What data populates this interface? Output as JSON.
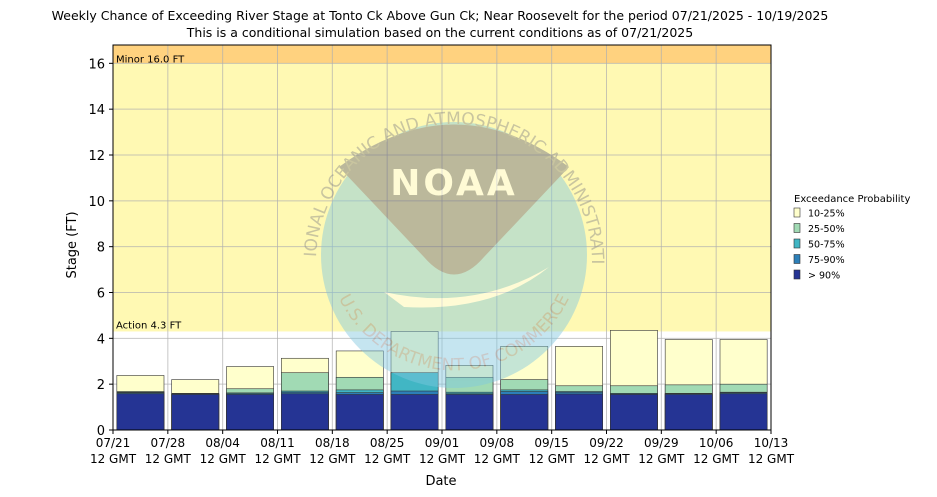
{
  "chart_data": {
    "type": "bar",
    "title": "Weekly Chance of Exceeding River Stage at Tonto Ck Above Gun Ck; Near Roosevelt for the period 07/21/2025 - 10/19/2025",
    "subtitle": "This is a conditional simulation based on the current conditions as of 07/21/2025",
    "xlabel": "Date",
    "ylabel": "Stage (FT)",
    "ylim": [
      0,
      16.8
    ],
    "yticks": [
      0,
      2,
      4,
      6,
      8,
      10,
      12,
      14,
      16
    ],
    "grid": true,
    "xtick_labels": [
      [
        "07/21",
        "12 GMT"
      ],
      [
        "07/28",
        "12 GMT"
      ],
      [
        "08/04",
        "12 GMT"
      ],
      [
        "08/11",
        "12 GMT"
      ],
      [
        "08/18",
        "12 GMT"
      ],
      [
        "08/25",
        "12 GMT"
      ],
      [
        "09/01",
        "12 GMT"
      ],
      [
        "09/08",
        "12 GMT"
      ],
      [
        "09/15",
        "12 GMT"
      ],
      [
        "09/22",
        "12 GMT"
      ],
      [
        "09/29",
        "12 GMT"
      ],
      [
        "10/06",
        "12 GMT"
      ],
      [
        "10/13",
        "12 GMT"
      ]
    ],
    "thresholds": [
      {
        "label": "Minor 16.0 FT",
        "value": 16.0,
        "color": "#ffd27f"
      },
      {
        "label": "Action 4.3 FT",
        "value": 4.3,
        "color": "#fff9b3"
      }
    ],
    "legend": {
      "title": "Exceedance Probability",
      "placement": "right",
      "items": [
        {
          "label": "10-25%",
          "color": "#ffffcc"
        },
        {
          "label": "25-50%",
          "color": "#a1dab4"
        },
        {
          "label": "50-75%",
          "color": "#41b6c4"
        },
        {
          "label": "75-90%",
          "color": "#2c7fb8"
        },
        {
          "label": "> 90%",
          "color": "#253494"
        }
      ]
    },
    "series": [
      {
        "name": "> 90%",
        "values": [
          1.58,
          1.55,
          1.55,
          1.58,
          1.55,
          1.55,
          1.55,
          1.55,
          1.57,
          1.55,
          1.55,
          1.58,
          1.58
        ]
      },
      {
        "name": "75-90%",
        "values": [
          1.62,
          1.57,
          1.58,
          1.65,
          1.63,
          1.7,
          1.58,
          1.68,
          1.65,
          1.57,
          1.58,
          1.62,
          1.62
        ]
      },
      {
        "name": "50-75%",
        "values": [
          1.65,
          1.58,
          1.62,
          1.7,
          1.75,
          2.5,
          1.65,
          1.75,
          1.68,
          1.6,
          1.6,
          1.65,
          1.68
        ]
      },
      {
        "name": "25-50%",
        "values": [
          1.68,
          1.6,
          1.8,
          2.5,
          2.3,
          2.5,
          2.3,
          2.2,
          1.93,
          1.93,
          1.97,
          2.0,
          2.32
        ]
      },
      {
        "name": "10-25%",
        "values": [
          2.38,
          2.2,
          2.77,
          3.13,
          3.45,
          4.3,
          2.82,
          3.65,
          3.65,
          4.35,
          3.95,
          3.95,
          3.78
        ]
      }
    ],
    "watermark": {
      "text_top": "NATIONAL OCEANIC AND ATMOSPHERIC ADMINISTRATION",
      "text_bottom": "U.S. DEPARTMENT OF COMMERCE",
      "logo_text": "NOAA"
    }
  }
}
